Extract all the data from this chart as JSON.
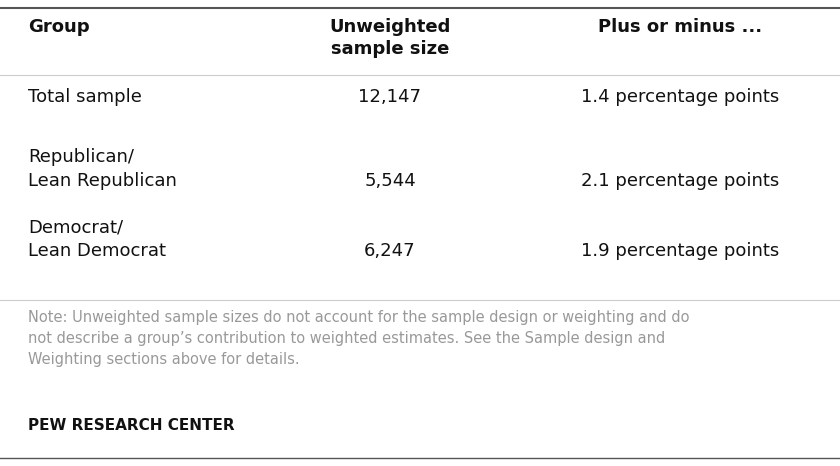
{
  "background_color": "#ffffff",
  "top_line_color": "#555555",
  "divider_color": "#cccccc",
  "bottom_line_color": "#555555",
  "col1_header": "Group",
  "col2_header": "Unweighted\nsample size",
  "col3_header": "Plus or minus ...",
  "rows": [
    {
      "group": "Total sample",
      "sample": "12,147",
      "margin": "1.4 percentage points",
      "multiline": false
    },
    {
      "group": "Republican/\nLean Republican",
      "sample": "5,544",
      "margin": "2.1 percentage points",
      "multiline": true
    },
    {
      "group": "Democrat/\nLean Democrat",
      "sample": "6,247",
      "margin": "1.9 percentage points",
      "multiline": true
    }
  ],
  "note_text": "Note: Unweighted sample sizes do not account for the sample design or weighting and do\nnot describe a group’s contribution to weighted estimates. See the Sample design and\nWeighting sections above for details.",
  "footer_text": "PEW RESEARCH CENTER",
  "header_color": "#111111",
  "data_color": "#111111",
  "note_color": "#999999",
  "footer_color": "#111111",
  "header_fontsize": 13,
  "data_fontsize": 13,
  "note_fontsize": 10.5,
  "footer_fontsize": 11
}
